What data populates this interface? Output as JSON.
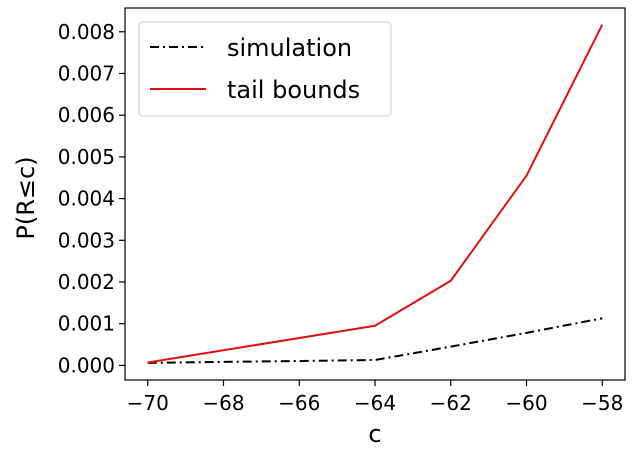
{
  "chart_data": {
    "type": "line",
    "xlabel": "c",
    "ylabel": "P(R≤c)",
    "xlim": [
      -70.6,
      -57.4
    ],
    "ylim": [
      -0.00035,
      0.00857
    ],
    "x_ticks": [
      -70,
      -68,
      -66,
      -64,
      -62,
      -60,
      -58
    ],
    "x_tick_labels": [
      "−70",
      "−68",
      "−66",
      "−64",
      "−62",
      "−60",
      "−58"
    ],
    "y_ticks": [
      0.0,
      0.001,
      0.002,
      0.003,
      0.004,
      0.005,
      0.006,
      0.007,
      0.008
    ],
    "y_tick_labels": [
      "0.000",
      "0.001",
      "0.002",
      "0.003",
      "0.004",
      "0.005",
      "0.006",
      "0.007",
      "0.008"
    ],
    "grid": false,
    "legend_position": "top-left",
    "series": [
      {
        "name": "simulation",
        "color": "#000000",
        "dash": "dashdot",
        "points": [
          [
            -70,
            6e-05
          ],
          [
            -64,
            0.00013
          ],
          [
            -62,
            0.00045
          ],
          [
            -60,
            0.00078
          ],
          [
            -58,
            0.00113
          ]
        ]
      },
      {
        "name": "tail bounds",
        "color": "#e01010",
        "dash": "solid",
        "points": [
          [
            -70,
            7e-05
          ],
          [
            -64,
            0.00095
          ],
          [
            -62,
            0.00203
          ],
          [
            -60,
            0.00455
          ],
          [
            -58,
            0.00817
          ]
        ]
      }
    ]
  }
}
